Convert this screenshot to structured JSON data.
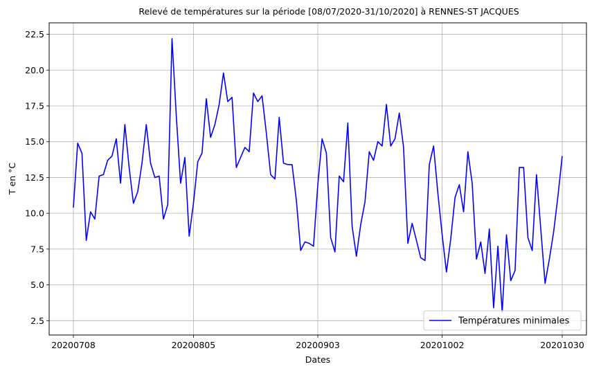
{
  "chart_data": {
    "type": "line",
    "title": "Relevé de températures sur la période [08/07/2020-31/10/2020] à RENNES-ST JACQUES",
    "xlabel": "Dates",
    "ylabel": "T en °C",
    "x_ticks": [
      "20200708",
      "20200805",
      "20200903",
      "20201002",
      "20201030"
    ],
    "xlim": [
      "2020-07-08",
      "2020-10-30"
    ],
    "y_ticks": [
      "2.5",
      "5.0",
      "7.5",
      "10.0",
      "12.5",
      "15.0",
      "17.5",
      "20.0",
      "22.5"
    ],
    "ylim": [
      1.5,
      23.3
    ],
    "grid": true,
    "legend_position": "bottom-right",
    "series": [
      {
        "name": "Températures minimales",
        "color": "#0000ff",
        "x": [
          "2020-07-08",
          "2020-07-09",
          "2020-07-10",
          "2020-07-11",
          "2020-07-12",
          "2020-07-13",
          "2020-07-14",
          "2020-07-15",
          "2020-07-16",
          "2020-07-17",
          "2020-07-18",
          "2020-07-19",
          "2020-07-20",
          "2020-07-21",
          "2020-07-22",
          "2020-07-23",
          "2020-07-24",
          "2020-07-25",
          "2020-07-26",
          "2020-07-27",
          "2020-07-28",
          "2020-07-29",
          "2020-07-30",
          "2020-07-31",
          "2020-08-01",
          "2020-08-02",
          "2020-08-03",
          "2020-08-04",
          "2020-08-05",
          "2020-08-06",
          "2020-08-07",
          "2020-08-08",
          "2020-08-09",
          "2020-08-10",
          "2020-08-11",
          "2020-08-12",
          "2020-08-13",
          "2020-08-14",
          "2020-08-15",
          "2020-08-16",
          "2020-08-17",
          "2020-08-18",
          "2020-08-19",
          "2020-08-20",
          "2020-08-21",
          "2020-08-22",
          "2020-08-23",
          "2020-08-24",
          "2020-08-25",
          "2020-08-26",
          "2020-08-27",
          "2020-08-28",
          "2020-08-29",
          "2020-08-30",
          "2020-08-31",
          "2020-09-01",
          "2020-09-02",
          "2020-09-03",
          "2020-09-04",
          "2020-09-05",
          "2020-09-06",
          "2020-09-07",
          "2020-09-08",
          "2020-09-09",
          "2020-09-10",
          "2020-09-11",
          "2020-09-12",
          "2020-09-13",
          "2020-09-14",
          "2020-09-15",
          "2020-09-16",
          "2020-09-17",
          "2020-09-18",
          "2020-09-19",
          "2020-09-20",
          "2020-09-21",
          "2020-09-22",
          "2020-09-23",
          "2020-09-24",
          "2020-09-25",
          "2020-09-26",
          "2020-09-27",
          "2020-09-28",
          "2020-09-29",
          "2020-09-30",
          "2020-10-01",
          "2020-10-02",
          "2020-10-03",
          "2020-10-04",
          "2020-10-05",
          "2020-10-06",
          "2020-10-07",
          "2020-10-08",
          "2020-10-09",
          "2020-10-10",
          "2020-10-11",
          "2020-10-12",
          "2020-10-13",
          "2020-10-14",
          "2020-10-15",
          "2020-10-16",
          "2020-10-17",
          "2020-10-18",
          "2020-10-19",
          "2020-10-20",
          "2020-10-21",
          "2020-10-22",
          "2020-10-23",
          "2020-10-24",
          "2020-10-25",
          "2020-10-26",
          "2020-10-27",
          "2020-10-28",
          "2020-10-29",
          "2020-10-30"
        ],
        "values": [
          10.4,
          14.9,
          14.2,
          8.1,
          10.1,
          9.6,
          12.6,
          12.7,
          13.7,
          14.0,
          15.2,
          12.1,
          16.2,
          13.2,
          10.7,
          11.5,
          13.5,
          16.2,
          13.5,
          12.5,
          12.6,
          9.6,
          10.6,
          22.2,
          16.8,
          12.1,
          13.9,
          8.4,
          10.7,
          13.6,
          14.2,
          18.0,
          15.3,
          16.2,
          17.6,
          19.8,
          17.8,
          18.1,
          13.2,
          13.9,
          14.6,
          14.3,
          18.4,
          17.8,
          18.2,
          15.6,
          12.7,
          12.4,
          16.7,
          13.5,
          13.4,
          13.4,
          10.9,
          7.4,
          8.0,
          7.9,
          7.7,
          12.0,
          15.2,
          14.2,
          8.3,
          7.3,
          12.6,
          12.2,
          16.3,
          9.1,
          7.0,
          9.2,
          10.8,
          14.3,
          13.7,
          15.0,
          14.7,
          17.6,
          14.7,
          15.2,
          17.0,
          14.6,
          7.9,
          9.3,
          8.1,
          6.9,
          6.7,
          13.4,
          14.7,
          11.4,
          8.5,
          5.9,
          8.2,
          11.1,
          12.0,
          10.1,
          14.3,
          12.1,
          6.8,
          8.0,
          5.8,
          8.9,
          3.4,
          7.7,
          3.1,
          8.5,
          5.3,
          6.0,
          13.2,
          13.2,
          8.3,
          7.4,
          12.7,
          8.9,
          5.1,
          6.8,
          8.7,
          11.2,
          14.0
        ]
      }
    ]
  }
}
